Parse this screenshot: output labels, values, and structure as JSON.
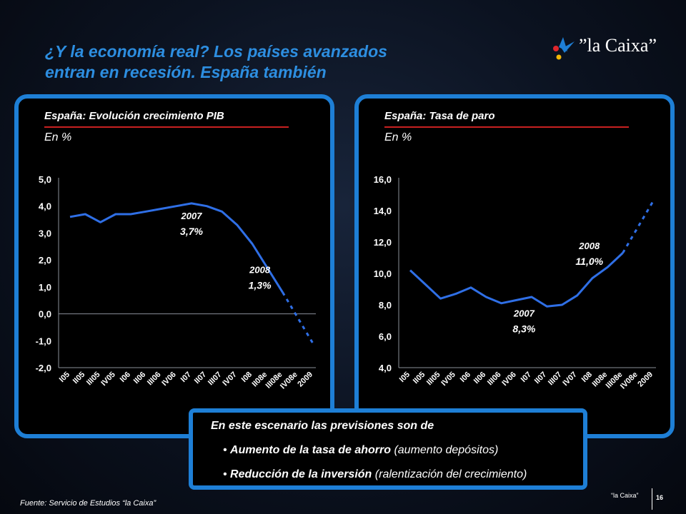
{
  "slide": {
    "title_line1": "¿Y la economía real? Los países avanzados",
    "title_line2": "entran en recesión. España también",
    "logo_text": "”la Caixa”",
    "source": "Fuente: Servicio de Estudios “la Caixa”",
    "footer_logo": "“la Caixa”",
    "page_number": "16",
    "colors": {
      "accent": "#1e7fd6",
      "title": "#2d8ee0",
      "divider": "#c82020",
      "line": "#2f6fe6",
      "star_red": "#e0262c"
    }
  },
  "note": {
    "title": "En este escenario las previsiones son de",
    "bullet1_bold": "Aumento de la tasa de ahorro",
    "bullet1_rest": "(aumento depósitos)",
    "bullet2_bold": "Reducción de la inversión",
    "bullet2_rest": "(ralentización del crecimiento)"
  },
  "chart_data": [
    {
      "type": "line",
      "title": "España: Evolución crecimiento PIB",
      "unit": "En %",
      "categories": [
        "I05",
        "II05",
        "III05",
        "IV05",
        "I06",
        "II06",
        "III06",
        "IV06",
        "I07",
        "II07",
        "III07",
        "IV07",
        "I08",
        "II08e",
        "III08e",
        "IV08e",
        "2009"
      ],
      "ylim": [
        -2.0,
        5.0
      ],
      "yticks": [
        "5,0",
        "4,0",
        "3,0",
        "2,0",
        "1,0",
        "0,0",
        "-1,0",
        "-2,0"
      ],
      "ytick_values": [
        5,
        4,
        3,
        2,
        1,
        0,
        -1,
        -2
      ],
      "series": [
        {
          "style": "solid",
          "points": [
            [
              0,
              3.6
            ],
            [
              1,
              3.7
            ],
            [
              2,
              3.4
            ],
            [
              3,
              3.7
            ],
            [
              4,
              3.7
            ],
            [
              5,
              3.8
            ],
            [
              6,
              3.9
            ],
            [
              7,
              4.0
            ],
            [
              8,
              4.1
            ],
            [
              9,
              4.0
            ],
            [
              10,
              3.8
            ],
            [
              11,
              3.3
            ],
            [
              12,
              2.6
            ],
            [
              13,
              1.7
            ],
            [
              14,
              0.8
            ]
          ]
        },
        {
          "style": "dashed",
          "points": [
            [
              14,
              0.8
            ],
            [
              16,
              -1.1
            ]
          ]
        }
      ],
      "annotations": [
        {
          "year": "2007",
          "value": "3,7%",
          "x": 8,
          "y": 3.2
        },
        {
          "year": "2008",
          "value": "1,3%",
          "x": 12.5,
          "y": 1.2
        }
      ],
      "zero_line": true
    },
    {
      "type": "line",
      "title": "España: Tasa de paro",
      "unit": "En %",
      "categories": [
        "I05",
        "II05",
        "III05",
        "IV05",
        "I06",
        "II06",
        "III06",
        "IV06",
        "I07",
        "II07",
        "III07",
        "IV07",
        "I08",
        "II08e",
        "III08e",
        "IV08e",
        "2009"
      ],
      "ylim": [
        4.0,
        16.0
      ],
      "yticks": [
        "16,0",
        "14,0",
        "12,0",
        "10,0",
        "8,0",
        "6,0",
        "4,0"
      ],
      "ytick_values": [
        16,
        14,
        12,
        10,
        8,
        6,
        4
      ],
      "series": [
        {
          "style": "solid",
          "points": [
            [
              0,
              10.2
            ],
            [
              1,
              9.3
            ],
            [
              2,
              8.4
            ],
            [
              3,
              8.7
            ],
            [
              4,
              9.1
            ],
            [
              5,
              8.5
            ],
            [
              6,
              8.1
            ],
            [
              7,
              8.3
            ],
            [
              8,
              8.5
            ],
            [
              9,
              7.9
            ],
            [
              10,
              8.0
            ],
            [
              11,
              8.6
            ],
            [
              12,
              9.7
            ],
            [
              13,
              10.4
            ],
            [
              14,
              11.3
            ]
          ]
        },
        {
          "style": "dashed",
          "points": [
            [
              14,
              11.3
            ],
            [
              16,
              14.6
            ]
          ]
        }
      ],
      "annotations": [
        {
          "year": "2007",
          "value": "8,3%",
          "x": 7.5,
          "y": 6.7
        },
        {
          "year": "2008",
          "value": "11,0%",
          "x": 11.8,
          "y": 11.0
        }
      ],
      "zero_line": false
    }
  ]
}
